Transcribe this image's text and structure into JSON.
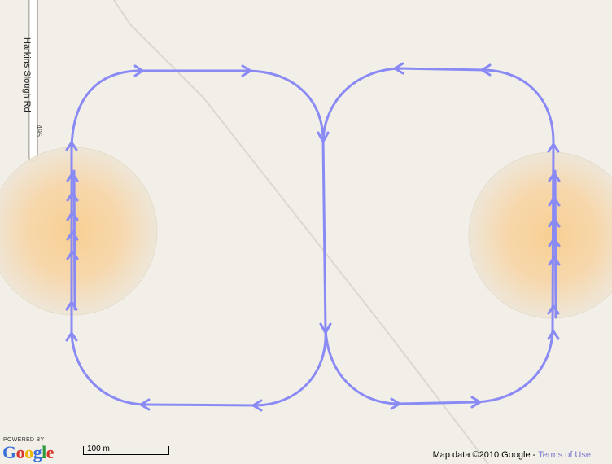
{
  "map": {
    "road": {
      "name": "Harkins Slough Rd",
      "shield": "495"
    },
    "route_color": "#8a8af5",
    "heat_color": "#f7d39b"
  },
  "branding": {
    "powered_by": "POWERED BY",
    "logo_letters": [
      "G",
      "o",
      "o",
      "g",
      "l",
      "e"
    ],
    "logo_colors": [
      "#3b6fd8",
      "#d9362b",
      "#f0b400",
      "#3b6fd8",
      "#2e9a3c",
      "#d9362b"
    ]
  },
  "scale": {
    "label": "100 m"
  },
  "footer": {
    "map_data": "Map data ©2010  Google",
    "separator": " - ",
    "terms": "Terms of Use"
  }
}
